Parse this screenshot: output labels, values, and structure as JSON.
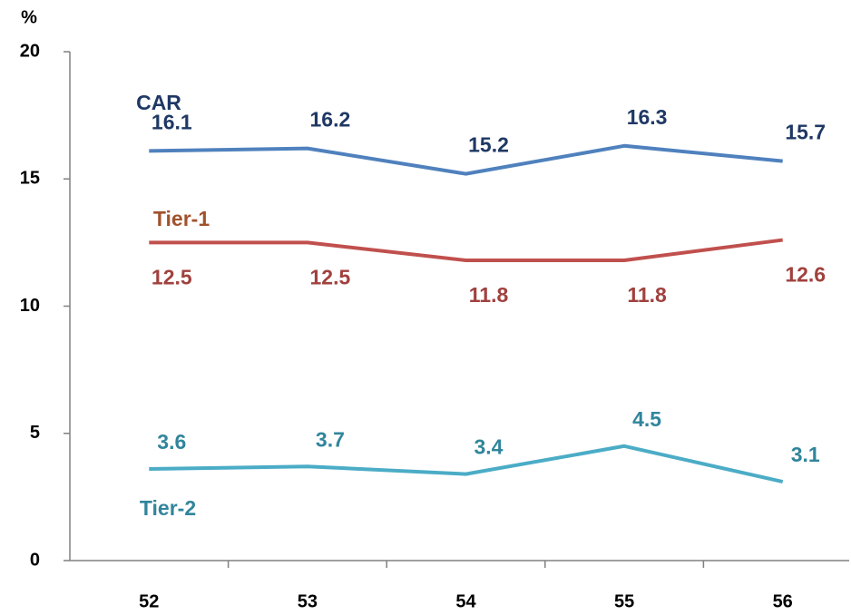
{
  "chart_data": {
    "type": "line",
    "y_label": "%",
    "categories": [
      "52",
      "53",
      "54",
      "55",
      "56"
    ],
    "series": [
      {
        "name": "CAR",
        "color": "#4f81bd",
        "label_color": "#1f3864",
        "values": [
          16.1,
          16.2,
          15.2,
          16.3,
          15.7
        ]
      },
      {
        "name": "Tier-1",
        "color": "#c0504d",
        "label_color": "#a0413e",
        "name_color": "#a0522d",
        "values": [
          12.5,
          12.5,
          11.8,
          11.8,
          12.6
        ]
      },
      {
        "name": "Tier-2",
        "color": "#4bacc6",
        "label_color": "#31859c",
        "values": [
          3.6,
          3.7,
          3.4,
          4.5,
          3.1
        ]
      }
    ],
    "ylim": [
      0,
      20
    ],
    "yticks": [
      0,
      5,
      10,
      15,
      20
    ],
    "grid": false
  }
}
